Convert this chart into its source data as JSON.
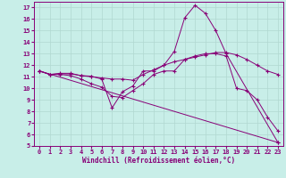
{
  "xlabel": "Windchill (Refroidissement éolien,°C)",
  "background_color": "#c8eee8",
  "grid_color": "#b0d8d0",
  "line_color": "#880077",
  "xlim": [
    -0.5,
    23.5
  ],
  "ylim": [
    5,
    17.5
  ],
  "yticks": [
    5,
    6,
    7,
    8,
    9,
    10,
    11,
    12,
    13,
    14,
    15,
    16,
    17
  ],
  "xticks": [
    0,
    1,
    2,
    3,
    4,
    5,
    6,
    7,
    8,
    9,
    10,
    11,
    12,
    13,
    14,
    15,
    16,
    17,
    18,
    19,
    20,
    21,
    22,
    23
  ],
  "series": [
    {
      "x": [
        0,
        1,
        2,
        3,
        4,
        5,
        6,
        7,
        8,
        9,
        10,
        11,
        12,
        13,
        14,
        15,
        16,
        17,
        18,
        23
      ],
      "y": [
        11.5,
        11.2,
        11.3,
        11.3,
        11.1,
        11.05,
        10.8,
        8.3,
        9.7,
        10.2,
        11.5,
        11.5,
        12.0,
        13.2,
        16.1,
        17.2,
        16.5,
        15.0,
        13.0,
        5.3
      ]
    },
    {
      "x": [
        0,
        1,
        2,
        3,
        4,
        5,
        6,
        7,
        8,
        9,
        10,
        11,
        12,
        13,
        14,
        15,
        16,
        17,
        18,
        19,
        20,
        21,
        22,
        23
      ],
      "y": [
        11.5,
        11.2,
        11.25,
        11.25,
        11.1,
        11.0,
        10.9,
        10.8,
        10.8,
        10.7,
        11.2,
        11.6,
        12.0,
        12.3,
        12.5,
        12.7,
        12.9,
        13.1,
        13.1,
        12.9,
        12.5,
        12.0,
        11.5,
        11.2
      ]
    },
    {
      "x": [
        0,
        1,
        2,
        3,
        4,
        5,
        6,
        7,
        8,
        9,
        10,
        11,
        12,
        13,
        14,
        15,
        16,
        17,
        18,
        19,
        20,
        21,
        22,
        23
      ],
      "y": [
        11.5,
        11.2,
        11.2,
        11.1,
        10.8,
        10.4,
        10.1,
        9.3,
        9.2,
        9.8,
        10.4,
        11.2,
        11.5,
        11.5,
        12.5,
        12.8,
        13.0,
        13.0,
        12.8,
        10.0,
        9.8,
        9.0,
        7.5,
        6.3
      ]
    },
    {
      "x": [
        0,
        23
      ],
      "y": [
        11.5,
        5.3
      ]
    }
  ]
}
